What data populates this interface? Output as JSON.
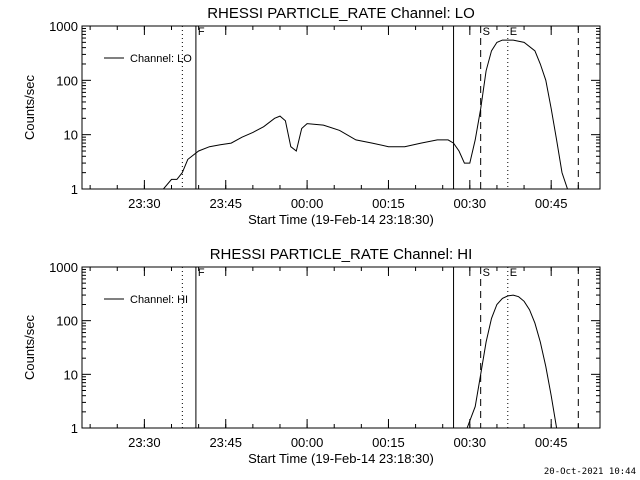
{
  "timestamp": "20-Oct-2021 10:44",
  "chart_data": [
    {
      "type": "line",
      "title": "RHESSI PARTICLE_RATE Channel: LO",
      "xlabel": "Start Time (19-Feb-14 23:18:30)",
      "ylabel": "Counts/sec",
      "y_scale": "log",
      "ylim": [
        1,
        1000
      ],
      "xlim": [
        "23:18:30",
        "00:54:00"
      ],
      "x_ticks": [
        "23:30",
        "23:45",
        "00:00",
        "00:15",
        "00:30",
        "00:45"
      ],
      "y_ticks": [
        "1",
        "10",
        "100",
        "1000"
      ],
      "legend": {
        "position": "top-left",
        "entries": [
          "Channel: LO"
        ]
      },
      "series": [
        {
          "name": "Channel: LO",
          "x": [
            "23:18:30",
            "23:20:00",
            "23:22:00",
            "23:24:00",
            "23:26:00",
            "23:28:00",
            "23:30:00",
            "23:32:00",
            "23:33:30",
            "23:35:00",
            "23:36:00",
            "23:37:00",
            "23:38:00",
            "23:40:00",
            "23:42:00",
            "23:44:00",
            "23:46:00",
            "23:48:00",
            "23:50:00",
            "23:52:00",
            "23:54:00",
            "23:55:00",
            "23:56:00",
            "23:57:00",
            "23:58:00",
            "23:59:00",
            "00:00:00",
            "00:03:00",
            "00:06:00",
            "00:09:00",
            "00:12:00",
            "00:15:00",
            "00:18:00",
            "00:21:00",
            "00:24:00",
            "00:26:00",
            "00:27:00",
            "00:28:00",
            "00:29:00",
            "00:30:00",
            "00:31:00",
            "00:32:00",
            "00:33:00",
            "00:34:00",
            "00:35:00",
            "00:36:00",
            "00:38:00",
            "00:40:00",
            "00:42:00",
            "00:43:00",
            "00:44:00",
            "00:45:00",
            "00:46:00",
            "00:47:00",
            "00:48:00",
            "00:49:00",
            "00:50:00"
          ],
          "y": [
            1,
            1,
            1,
            1,
            1,
            1,
            1,
            1,
            1,
            1.5,
            1.5,
            2,
            3.5,
            5,
            6,
            6.5,
            7,
            9,
            11,
            14,
            20,
            22,
            18,
            6,
            5,
            13,
            16,
            15,
            12,
            8,
            7,
            6,
            6,
            7,
            8,
            8,
            7,
            5,
            3,
            3,
            8,
            30,
            150,
            350,
            500,
            550,
            550,
            500,
            350,
            200,
            100,
            30,
            8,
            2,
            1,
            1,
            1
          ]
        }
      ],
      "flags": [
        "F",
        "S",
        "E"
      ]
    },
    {
      "type": "line",
      "title": "RHESSI PARTICLE_RATE Channel: HI",
      "xlabel": "Start Time (19-Feb-14 23:18:30)",
      "ylabel": "Counts/sec",
      "y_scale": "log",
      "ylim": [
        1,
        1000
      ],
      "xlim": [
        "23:18:30",
        "00:54:00"
      ],
      "x_ticks": [
        "23:30",
        "23:45",
        "00:00",
        "00:15",
        "00:30",
        "00:45"
      ],
      "y_ticks": [
        "1",
        "10",
        "100",
        "1000"
      ],
      "legend": {
        "position": "top-left",
        "entries": [
          "Channel: HI"
        ]
      },
      "series": [
        {
          "name": "Channel: HI",
          "x": [
            "00:29:30",
            "00:31:00",
            "00:32:00",
            "00:33:00",
            "00:34:00",
            "00:35:00",
            "00:36:00",
            "00:37:00",
            "00:38:00",
            "00:39:00",
            "00:40:00",
            "00:41:00",
            "00:42:00",
            "00:43:00",
            "00:44:00",
            "00:45:00",
            "00:46:00"
          ],
          "y": [
            1,
            2.5,
            10,
            40,
            110,
            200,
            260,
            290,
            300,
            280,
            230,
            160,
            90,
            40,
            14,
            4,
            1
          ]
        }
      ],
      "flags": [
        "F",
        "S",
        "E"
      ]
    }
  ]
}
